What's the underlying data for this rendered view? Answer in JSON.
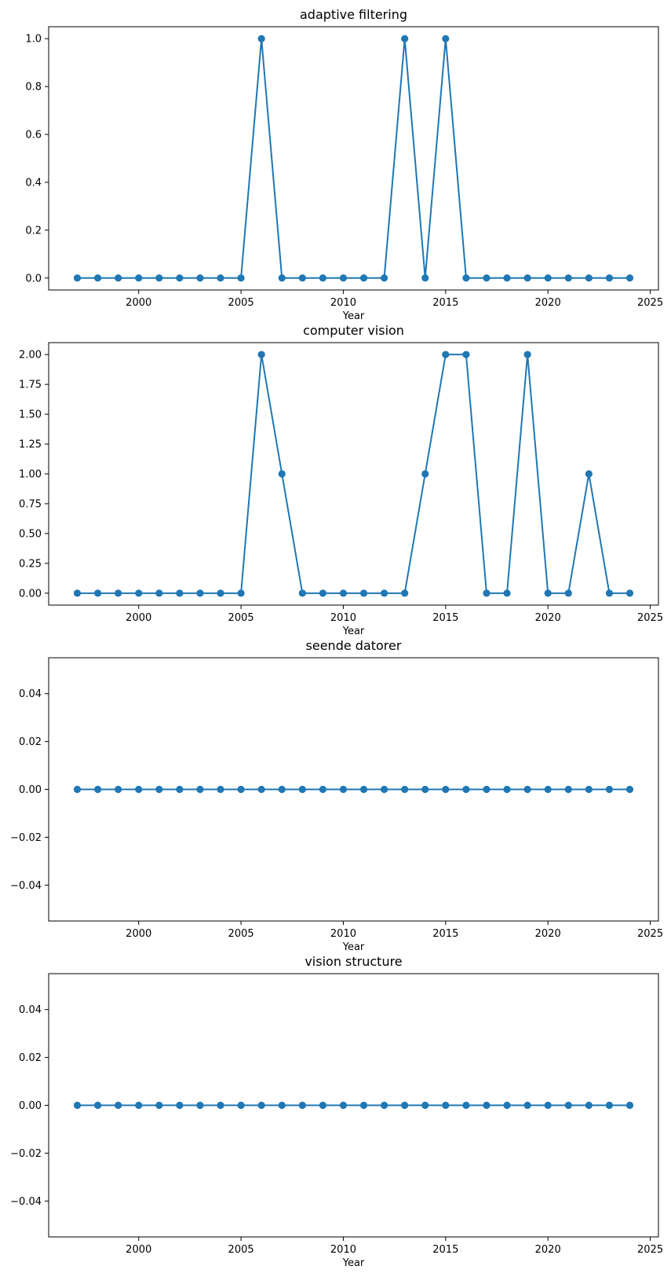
{
  "colors": {
    "line": "#1f77b4",
    "axis": "#000000",
    "background": "#ffffff"
  },
  "chart_data": [
    {
      "type": "line",
      "title": "adaptive filtering",
      "xlabel": "Year",
      "ylabel": "",
      "xlim": [
        1995.6,
        2025.4
      ],
      "ylim": [
        -0.05,
        1.05
      ],
      "xticks": [
        2000,
        2005,
        2010,
        2015,
        2020,
        2025
      ],
      "yticks": [
        0.0,
        0.2,
        0.4,
        0.6,
        0.8,
        1.0
      ],
      "ytick_labels": [
        "0.0",
        "0.2",
        "0.4",
        "0.6",
        "0.8",
        "1.0"
      ],
      "grid": false,
      "marker": "circle",
      "x": [
        1997,
        1998,
        1999,
        2000,
        2001,
        2002,
        2003,
        2004,
        2005,
        2006,
        2007,
        2008,
        2009,
        2010,
        2011,
        2012,
        2013,
        2014,
        2015,
        2016,
        2017,
        2018,
        2019,
        2020,
        2021,
        2022,
        2023,
        2024
      ],
      "y": [
        0,
        0,
        0,
        0,
        0,
        0,
        0,
        0,
        0,
        1,
        0,
        0,
        0,
        0,
        0,
        0,
        1,
        0,
        1,
        0,
        0,
        0,
        0,
        0,
        0,
        0,
        0,
        0
      ]
    },
    {
      "type": "line",
      "title": "computer vision",
      "xlabel": "Year",
      "ylabel": "",
      "xlim": [
        1995.6,
        2025.4
      ],
      "ylim": [
        -0.1,
        2.1
      ],
      "xticks": [
        2000,
        2005,
        2010,
        2015,
        2020,
        2025
      ],
      "yticks": [
        0.0,
        0.25,
        0.5,
        0.75,
        1.0,
        1.25,
        1.5,
        1.75,
        2.0
      ],
      "ytick_labels": [
        "0.00",
        "0.25",
        "0.50",
        "0.75",
        "1.00",
        "1.25",
        "1.50",
        "1.75",
        "2.00"
      ],
      "grid": false,
      "marker": "circle",
      "x": [
        1997,
        1998,
        1999,
        2000,
        2001,
        2002,
        2003,
        2004,
        2005,
        2006,
        2007,
        2008,
        2009,
        2010,
        2011,
        2012,
        2013,
        2014,
        2015,
        2016,
        2017,
        2018,
        2019,
        2020,
        2021,
        2022,
        2023,
        2024
      ],
      "y": [
        0,
        0,
        0,
        0,
        0,
        0,
        0,
        0,
        0,
        2,
        1,
        0,
        0,
        0,
        0,
        0,
        0,
        1,
        2,
        2,
        0,
        0,
        2,
        0,
        0,
        1,
        0,
        0
      ]
    },
    {
      "type": "line",
      "title": "seende datorer",
      "xlabel": "Year",
      "ylabel": "",
      "xlim": [
        1995.6,
        2025.4
      ],
      "ylim": [
        -0.055,
        0.055
      ],
      "xticks": [
        2000,
        2005,
        2010,
        2015,
        2020,
        2025
      ],
      "yticks": [
        -0.04,
        -0.02,
        0.0,
        0.02,
        0.04
      ],
      "ytick_labels": [
        "−0.04",
        "−0.02",
        "0.00",
        "0.02",
        "0.04"
      ],
      "grid": false,
      "marker": "circle",
      "x": [
        1997,
        1998,
        1999,
        2000,
        2001,
        2002,
        2003,
        2004,
        2005,
        2006,
        2007,
        2008,
        2009,
        2010,
        2011,
        2012,
        2013,
        2014,
        2015,
        2016,
        2017,
        2018,
        2019,
        2020,
        2021,
        2022,
        2023,
        2024
      ],
      "y": [
        0,
        0,
        0,
        0,
        0,
        0,
        0,
        0,
        0,
        0,
        0,
        0,
        0,
        0,
        0,
        0,
        0,
        0,
        0,
        0,
        0,
        0,
        0,
        0,
        0,
        0,
        0,
        0
      ]
    },
    {
      "type": "line",
      "title": "vision structure",
      "xlabel": "Year",
      "ylabel": "",
      "xlim": [
        1995.6,
        2025.4
      ],
      "ylim": [
        -0.055,
        0.055
      ],
      "xticks": [
        2000,
        2005,
        2010,
        2015,
        2020,
        2025
      ],
      "yticks": [
        -0.04,
        -0.02,
        0.0,
        0.02,
        0.04
      ],
      "ytick_labels": [
        "−0.04",
        "−0.02",
        "0.00",
        "0.02",
        "0.04"
      ],
      "grid": false,
      "marker": "circle",
      "x": [
        1997,
        1998,
        1999,
        2000,
        2001,
        2002,
        2003,
        2004,
        2005,
        2006,
        2007,
        2008,
        2009,
        2010,
        2011,
        2012,
        2013,
        2014,
        2015,
        2016,
        2017,
        2018,
        2019,
        2020,
        2021,
        2022,
        2023,
        2024
      ],
      "y": [
        0,
        0,
        0,
        0,
        0,
        0,
        0,
        0,
        0,
        0,
        0,
        0,
        0,
        0,
        0,
        0,
        0,
        0,
        0,
        0,
        0,
        0,
        0,
        0,
        0,
        0,
        0,
        0
      ]
    }
  ]
}
